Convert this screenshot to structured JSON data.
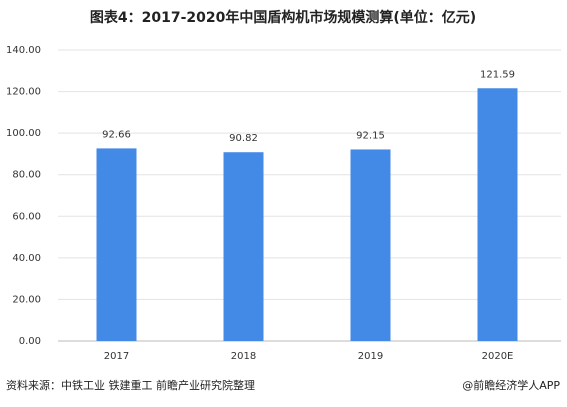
{
  "chart_data": {
    "type": "bar",
    "title": "图表4：2017-2020年中国盾构机市场规模测算(单位：亿元)",
    "categories": [
      "2017",
      "2018",
      "2019",
      "2020E"
    ],
    "values": [
      92.66,
      90.82,
      92.15,
      121.59
    ],
    "color": "#4389e6",
    "ylim": [
      0,
      140
    ],
    "yticks": [
      {
        "value": 0,
        "label": "0.00"
      },
      {
        "value": 20,
        "label": "20.00"
      },
      {
        "value": 40,
        "label": "40.00"
      },
      {
        "value": 60,
        "label": "60.00"
      },
      {
        "value": 80,
        "label": "80.00"
      },
      {
        "value": 100,
        "label": "100.00"
      },
      {
        "value": 120,
        "label": "120.00"
      },
      {
        "value": 140,
        "label": "140.00"
      }
    ],
    "grid": true,
    "source": "资料来源：中铁工业 铁建重工 前瞻产业研究院整理",
    "credit": "@前瞻经济学人APP"
  }
}
